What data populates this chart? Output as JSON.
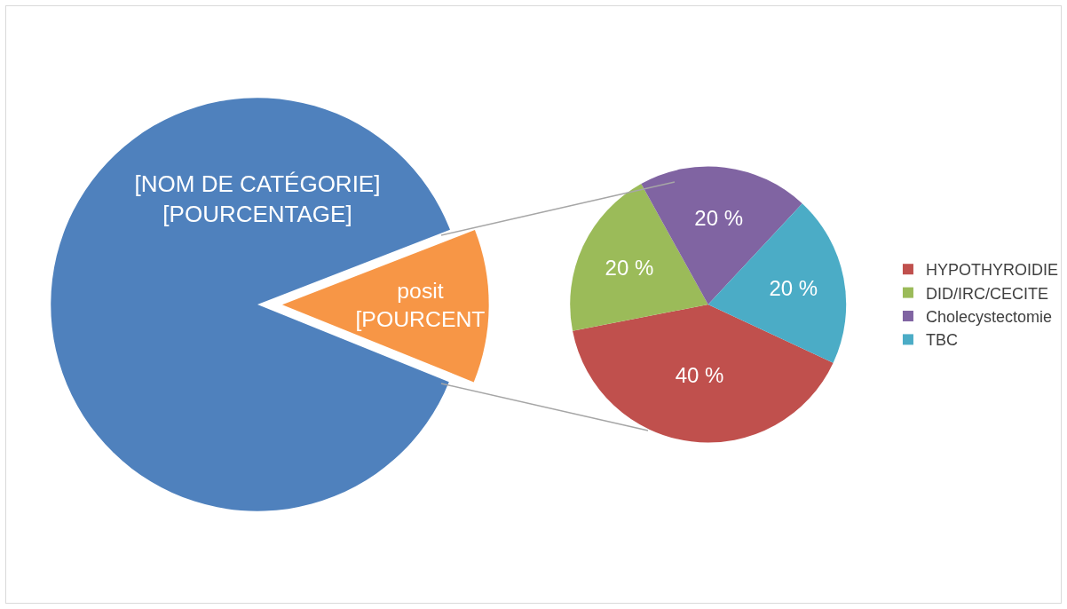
{
  "chart_data": [
    {
      "type": "pie",
      "categories": [
        "[NOM DE CATÉGORIE]",
        "posit"
      ],
      "values": [
        88,
        12
      ],
      "colors": [
        "#4f81bd",
        "#f79646"
      ],
      "value_labels": [
        "[POURCENTAGE]",
        "[POURCENT"
      ],
      "legend": false
    },
    {
      "type": "pie",
      "categories": [
        "HYPOTHYROIDIE",
        "DID/IRC/CECITE",
        "Cholecystectomie",
        "TBC"
      ],
      "values": [
        40,
        20,
        20,
        20
      ],
      "colors": [
        "#c0504d",
        "#9bbb59",
        "#8064a2",
        "#4bacc6"
      ],
      "value_labels": [
        "40 %",
        "20 %",
        "20 %",
        "20 %"
      ],
      "legend": "right"
    }
  ]
}
